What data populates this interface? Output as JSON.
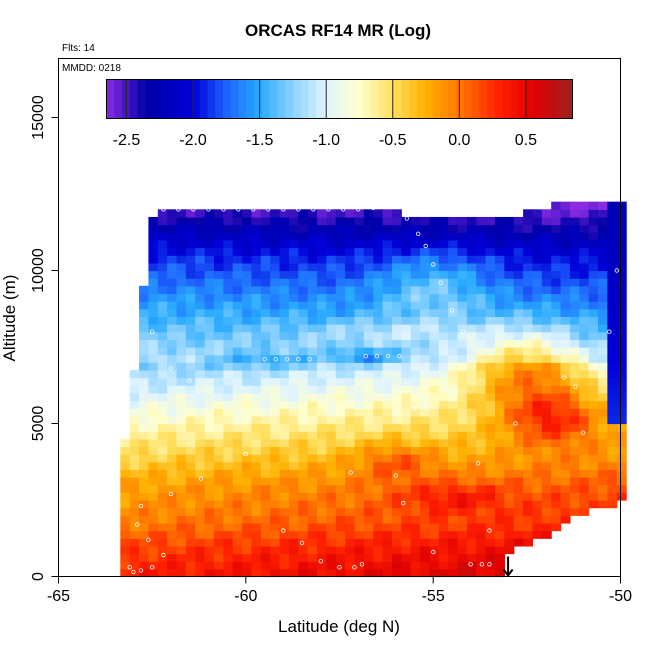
{
  "chart_data": {
    "type": "heatmap",
    "title": "ORCAS RF14 MR (Log)",
    "annotations": {
      "flights": "Flts: 14",
      "date": "MMDD: 0218"
    },
    "xlabel": "Latitude (deg N)",
    "ylabel": "Altitude (m)",
    "xlim": [
      -65,
      -50
    ],
    "ylim": [
      0,
      16500
    ],
    "x_ticks": [
      -65,
      -60,
      -55,
      -50
    ],
    "x_tick_labels": [
      "-65",
      "-60",
      "-55",
      "-50"
    ],
    "y_ticks": [
      0,
      5000,
      10000,
      15000
    ],
    "y_tick_labels": [
      "0",
      "5000",
      "10000",
      "15000"
    ],
    "colorbar": {
      "range": [
        -2.65,
        0.85
      ],
      "ticks": [
        -2.5,
        -2.0,
        -1.5,
        -1.0,
        -0.5,
        0.0,
        0.5
      ],
      "tick_labels": [
        "-2.5",
        "-2.0",
        "-1.5",
        "-1.0",
        "-0.5",
        "0.0",
        "0.5"
      ],
      "color_stops": [
        {
          "v": -2.65,
          "c": "#8a2be2"
        },
        {
          "v": -2.35,
          "c": "#0000a8"
        },
        {
          "v": -2.0,
          "c": "#0000d8"
        },
        {
          "v": -1.75,
          "c": "#1e64ff"
        },
        {
          "v": -1.5,
          "c": "#28aaff"
        },
        {
          "v": -1.25,
          "c": "#8cd2ff"
        },
        {
          "v": -1.0,
          "c": "#e0f4ff"
        },
        {
          "v": -0.75,
          "c": "#ffffcc"
        },
        {
          "v": -0.5,
          "c": "#ffe060"
        },
        {
          "v": -0.25,
          "c": "#ffb000"
        },
        {
          "v": 0.0,
          "c": "#ff7800"
        },
        {
          "v": 0.3,
          "c": "#ff2000"
        },
        {
          "v": 0.55,
          "c": "#e00000"
        },
        {
          "v": 0.85,
          "c": "#a02020"
        }
      ]
    },
    "field": {
      "lat_min": -63.0,
      "lat_max": -50.0,
      "lat_step": 0.25,
      "alt_step": 250,
      "top_altitude": [
        [
          -63.3,
          3750
        ],
        [
          -63.0,
          6500
        ],
        [
          -62.8,
          7600
        ],
        [
          -62.7,
          10000
        ],
        [
          -62.5,
          11700
        ],
        [
          -62.2,
          12000
        ],
        [
          -56.3,
          12000
        ],
        [
          -55.6,
          11500
        ],
        [
          -52.0,
          11800
        ],
        [
          -51.9,
          12200
        ],
        [
          -50.0,
          12200
        ]
      ],
      "bottom_altitude": [
        [
          -63.0,
          0
        ],
        [
          -57.8,
          0
        ],
        [
          -57.6,
          200
        ],
        [
          -53.2,
          200
        ],
        [
          -53.0,
          900
        ],
        [
          -52.3,
          1200
        ],
        [
          -51.6,
          1700
        ],
        [
          -51.0,
          2200
        ],
        [
          -50.2,
          2500
        ],
        [
          -50.0,
          2600
        ]
      ],
      "layers": [
        {
          "alt": 0,
          "val": 0.5
        },
        {
          "alt": 1000,
          "val": 0.32
        },
        {
          "alt": 1800,
          "val": 0.12
        },
        {
          "alt": 3000,
          "val": -0.05
        },
        {
          "alt": 4500,
          "val": -0.45
        },
        {
          "alt": 5500,
          "val": -0.72
        },
        {
          "alt": 6500,
          "val": -1.0
        },
        {
          "alt": 7800,
          "val": -1.35
        },
        {
          "alt": 9000,
          "val": -1.6
        },
        {
          "alt": 10500,
          "val": -1.95
        },
        {
          "alt": 11500,
          "val": -2.35
        },
        {
          "alt": 12200,
          "val": -2.6
        }
      ],
      "lat_gradient": 0.025,
      "right_column": {
        "lat_from": -50.4,
        "alt_from": 5000,
        "val": -1.9
      },
      "features": [
        {
          "lat": -56.0,
          "alt": 3800,
          "rlat": 1.0,
          "ralt": 600,
          "dv": 0.35
        },
        {
          "lat": -54.5,
          "alt": 2600,
          "rlat": 1.4,
          "ralt": 500,
          "dv": 0.3
        },
        {
          "lat": -52.5,
          "alt": 6800,
          "rlat": 1.6,
          "ralt": 1300,
          "dv": 0.85
        },
        {
          "lat": -51.8,
          "alt": 5200,
          "rlat": 1.3,
          "ralt": 900,
          "dv": 0.7
        },
        {
          "lat": -59.5,
          "alt": 7100,
          "rlat": 1.5,
          "ralt": 250,
          "dv": -0.35
        },
        {
          "lat": -56.8,
          "alt": 7200,
          "rlat": 0.8,
          "ralt": 250,
          "dv": -0.45
        },
        {
          "lat": -56.0,
          "alt": 8000,
          "rlat": 2.5,
          "ralt": 400,
          "dv": 0.25
        },
        {
          "lat": -55.0,
          "alt": 9500,
          "rlat": 1.5,
          "ralt": 1200,
          "dv": 0.4
        }
      ]
    },
    "flight_points": [
      [
        -62.8,
        12000
      ],
      [
        -62.5,
        12000
      ],
      [
        -62.2,
        12000
      ],
      [
        -61.8,
        12000
      ],
      [
        -61.4,
        12000
      ],
      [
        -61.0,
        12000
      ],
      [
        -60.6,
        12000
      ],
      [
        -60.2,
        12000
      ],
      [
        -59.8,
        12000
      ],
      [
        -59.4,
        12000
      ],
      [
        -59.0,
        12000
      ],
      [
        -58.6,
        12000
      ],
      [
        -58.2,
        12000
      ],
      [
        -57.8,
        12000
      ],
      [
        -57.4,
        12000
      ],
      [
        -57.0,
        12000
      ],
      [
        -56.6,
        12050
      ],
      [
        -56.2,
        12100
      ],
      [
        -55.7,
        11700
      ],
      [
        -55.4,
        11200
      ],
      [
        -55.2,
        10800
      ],
      [
        -55.0,
        10200
      ],
      [
        -54.8,
        9600
      ],
      [
        -54.5,
        8700
      ],
      [
        -54.2,
        8000
      ],
      [
        -52.0,
        12400
      ],
      [
        -51.7,
        12400
      ],
      [
        -51.4,
        12400
      ],
      [
        -51.1,
        12400
      ],
      [
        -50.8,
        12400
      ],
      [
        -50.5,
        12400
      ],
      [
        -50.2,
        12400
      ],
      [
        -50.1,
        10000
      ],
      [
        -50.3,
        8000
      ],
      [
        -59.5,
        7100
      ],
      [
        -59.2,
        7100
      ],
      [
        -58.9,
        7100
      ],
      [
        -58.6,
        7100
      ],
      [
        -58.3,
        7100
      ],
      [
        -56.8,
        7200
      ],
      [
        -56.5,
        7200
      ],
      [
        -56.2,
        7200
      ],
      [
        -55.9,
        7200
      ],
      [
        -62.5,
        8000
      ],
      [
        -62.0,
        6800
      ],
      [
        -61.5,
        6400
      ],
      [
        -60.0,
        4000
      ],
      [
        -61.2,
        3200
      ],
      [
        -62.0,
        2700
      ],
      [
        -62.8,
        2300
      ],
      [
        -62.9,
        1700
      ],
      [
        -62.6,
        1200
      ],
      [
        -62.2,
        700
      ],
      [
        -62.5,
        300
      ],
      [
        -62.8,
        200
      ],
      [
        -63.0,
        150
      ],
      [
        -63.1,
        300
      ],
      [
        -59.0,
        1500
      ],
      [
        -58.5,
        1100
      ],
      [
        -58.0,
        500
      ],
      [
        -57.5,
        300
      ],
      [
        -57.1,
        300
      ],
      [
        -56.9,
        400
      ],
      [
        -55.0,
        800
      ],
      [
        -54.0,
        400
      ],
      [
        -53.7,
        400
      ],
      [
        -53.5,
        400
      ],
      [
        -55.8,
        2400
      ],
      [
        -56.0,
        3300
      ],
      [
        -53.8,
        3700
      ],
      [
        -52.8,
        5000
      ],
      [
        -51.5,
        6500
      ],
      [
        -51.2,
        6200
      ],
      [
        -51.0,
        4700
      ],
      [
        -53.5,
        1500
      ],
      [
        -57.2,
        3400
      ],
      [
        -55.5,
        5500
      ]
    ],
    "marker": {
      "lat": -53.0,
      "alt": 0,
      "symbol": "down-arrow"
    }
  }
}
